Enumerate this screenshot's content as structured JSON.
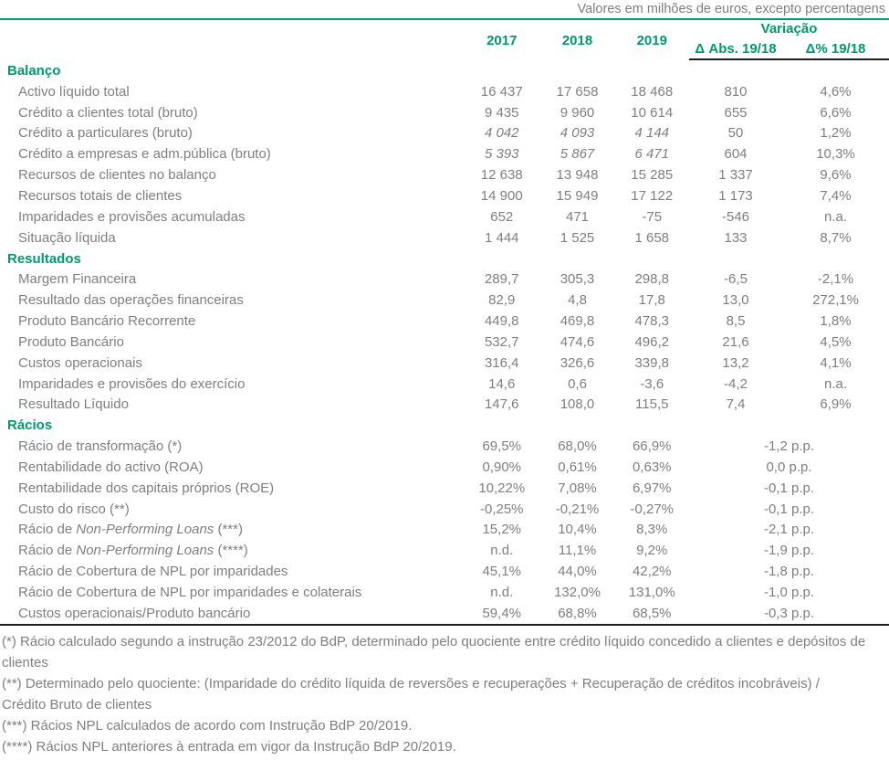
{
  "caption": "Valores em milhões de euros, excepto percentagens",
  "colors": {
    "accent_green": "#00996e",
    "text_gray": "#7f7f7f",
    "rule_dark": "#1f1f1f"
  },
  "columns": {
    "y2017": "2017",
    "y2018": "2018",
    "y2019": "2019",
    "variacao": "Variação",
    "delta_abs": "Δ Abs. 19/18",
    "delta_pct": "Δ% 19/18"
  },
  "table": {
    "sections": [
      {
        "title": "Balanço",
        "rows": [
          {
            "label": "Activo líquido total",
            "values": [
              "16 437",
              "17 658",
              "18 468"
            ],
            "delta_abs": "810",
            "delta_pct": "4,6%"
          },
          {
            "label": "Crédito a clientes total (bruto)",
            "values": [
              "9 435",
              "9 960",
              "10 614"
            ],
            "delta_abs": "655",
            "delta_pct": "6,6%"
          },
          {
            "label": "Crédito a particulares (bruto)",
            "values": [
              "4 042",
              "4 093",
              "4 144"
            ],
            "values_italic": true,
            "delta_abs": "50",
            "delta_pct": "1,2%"
          },
          {
            "label": "Crédito a empresas e adm.pública (bruto)",
            "values": [
              "5 393",
              "5 867",
              "6 471"
            ],
            "values_italic": true,
            "delta_abs": "604",
            "delta_pct": "10,3%"
          },
          {
            "label": "Recursos de clientes no balanço",
            "values": [
              "12 638",
              "13 948",
              "15 285"
            ],
            "delta_abs": "1 337",
            "delta_pct": "9,6%"
          },
          {
            "label": "Recursos totais de clientes",
            "values": [
              "14 900",
              "15 949",
              "17 122"
            ],
            "delta_abs": "1 173",
            "delta_pct": "7,4%"
          },
          {
            "label": "Imparidades e provisões acumuladas",
            "values": [
              "652",
              "471",
              "-75"
            ],
            "delta_abs": "-546",
            "delta_pct": "n.a."
          },
          {
            "label": "Situação líquida",
            "values": [
              "1 444",
              "1 525",
              "1 658"
            ],
            "delta_abs": "133",
            "delta_pct": "8,7%"
          }
        ]
      },
      {
        "title": "Resultados",
        "rows": [
          {
            "label": "Margem Financeira",
            "values": [
              "289,7",
              "305,3",
              "298,8"
            ],
            "delta_abs": "-6,5",
            "delta_pct": "-2,1%"
          },
          {
            "label": "Resultado das operações financeiras",
            "values": [
              "82,9",
              "4,8",
              "17,8"
            ],
            "delta_abs": "13,0",
            "delta_pct": "272,1%"
          },
          {
            "label": "Produto Bancário Recorrente",
            "values": [
              "449,8",
              "469,8",
              "478,3"
            ],
            "delta_abs": "8,5",
            "delta_pct": "1,8%"
          },
          {
            "label": "Produto Bancário",
            "values": [
              "532,7",
              "474,6",
              "496,2"
            ],
            "delta_abs": "21,6",
            "delta_pct": "4,5%"
          },
          {
            "label": "Custos operacionais",
            "values": [
              "316,4",
              "326,6",
              "339,8"
            ],
            "delta_abs": "13,2",
            "delta_pct": "4,1%"
          },
          {
            "label": "Imparidades e provisões do exercício",
            "values": [
              "14,6",
              "0,6",
              "-3,6"
            ],
            "delta_abs": "-4,2",
            "delta_pct": "n.a."
          },
          {
            "label": "Resultado Líquido",
            "values": [
              "147,6",
              "108,0",
              "115,5"
            ],
            "delta_abs": "7,4",
            "delta_pct": "6,9%"
          }
        ]
      },
      {
        "title": "Rácios",
        "rows": [
          {
            "label": "Rácio de transformação (*)",
            "values": [
              "69,5%",
              "68,0%",
              "66,9%"
            ],
            "delta_span": "-1,2 p.p."
          },
          {
            "label": "Rentabilidade do activo (ROA)",
            "values": [
              "0,90%",
              "0,61%",
              "0,63%"
            ],
            "delta_span": "0,0 p.p."
          },
          {
            "label": "Rentabilidade dos capitais próprios (ROE)",
            "values": [
              "10,22%",
              "7,08%",
              "6,97%"
            ],
            "delta_span": "-0,1 p.p."
          },
          {
            "label": "Custo do risco (**)",
            "values": [
              "-0,25%",
              "-0,21%",
              "-0,27%"
            ],
            "delta_span": "-0,1 p.p."
          },
          {
            "label_parts": {
              "pre": "Rácio de ",
              "italic": "Non-Performing Loans",
              "post": "  (***)"
            },
            "values": [
              "15,2%",
              "10,4%",
              "8,3%"
            ],
            "delta_span": "-2,1 p.p."
          },
          {
            "label_parts": {
              "pre": "Rácio de ",
              "italic": "Non-Performing Loans",
              "post": "  (****)"
            },
            "values": [
              "n.d.",
              "11,1%",
              "9,2%"
            ],
            "delta_span": "-1,9 p.p."
          },
          {
            "label": "Rácio de Cobertura de NPL por imparidades",
            "values": [
              "45,1%",
              "44,0%",
              "42,2%"
            ],
            "delta_span": "-1,8 p.p."
          },
          {
            "label": "Rácio de Cobertura de NPL por imparidades e colaterais",
            "values": [
              "n.d.",
              "132,0%",
              "131,0%"
            ],
            "delta_span": "-1,0 p.p."
          },
          {
            "label": "Custos operacionais/Produto bancário",
            "values": [
              "59,4%",
              "68,8%",
              "68,5%"
            ],
            "delta_span": "-0,3 p.p."
          }
        ]
      }
    ]
  },
  "footnotes": [
    "(*) Rácio calculado segundo a instrução 23/2012 do BdP, determinado pelo quociente entre crédito líquido concedido a clientes e depósitos de clientes",
    "(**) Determinado pelo quociente: (Imparidade do crédito líquida de reversões e recuperações + Recuperação de créditos incobráveis) / Crédito Bruto de clientes",
    "(***) Rácios NPL calculados de acordo com Instrução BdP 20/2019.",
    "(****) Rácios NPL anteriores à entrada em vigor da Instrução BdP 20/2019."
  ]
}
